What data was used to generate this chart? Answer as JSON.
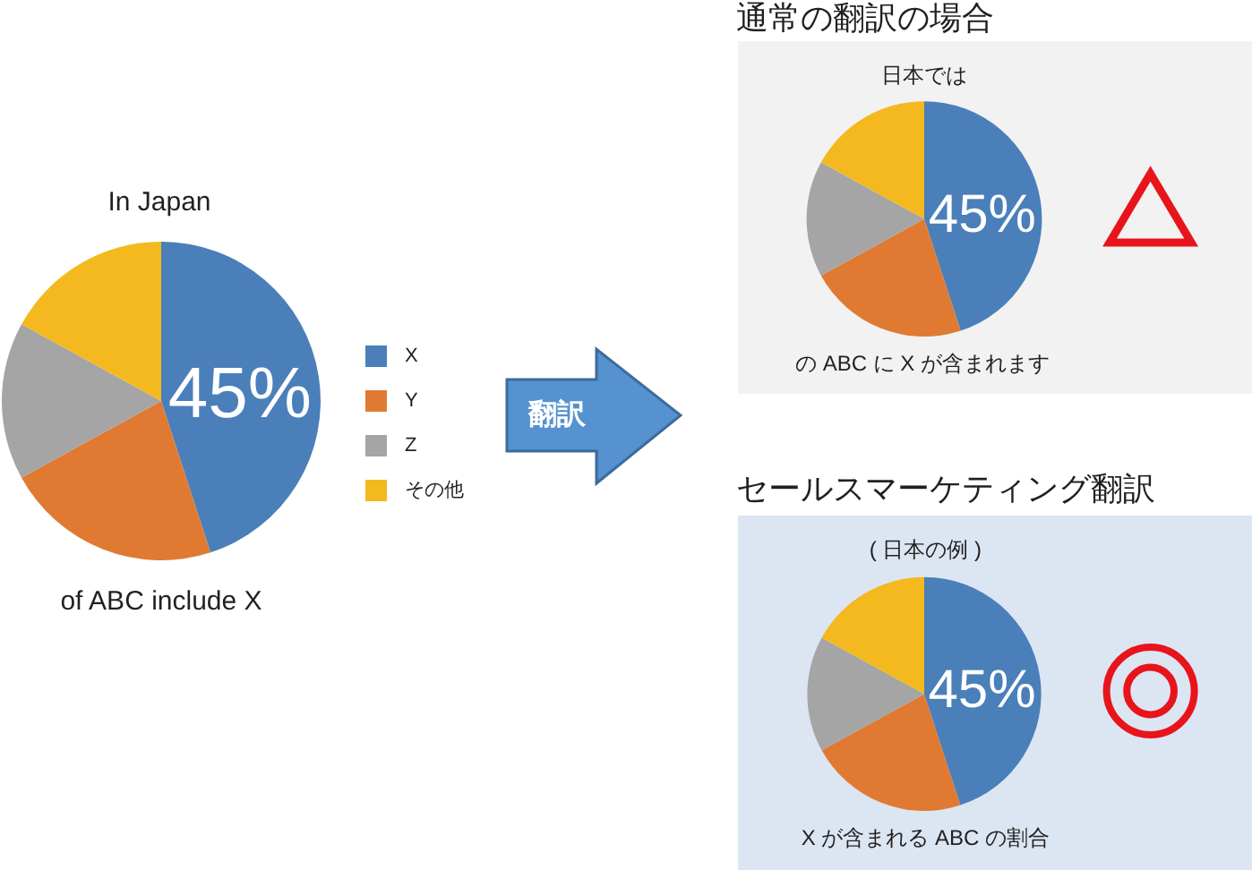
{
  "chart_data": [
    {
      "type": "pie",
      "title": "In Japan",
      "categories": [
        "X",
        "Y",
        "Z",
        "その他"
      ],
      "values": [
        45,
        22,
        16,
        17
      ],
      "colors": [
        "#4a7fba",
        "#e07a33",
        "#a5a5a5",
        "#f3b91f"
      ],
      "value_labels": [
        "45%",
        null,
        null,
        null
      ],
      "legend": "right",
      "annotations": [
        "of ABC include X",
        "翻訳"
      ]
    },
    {
      "type": "pie",
      "title": "通常の翻訳の場合",
      "subtitle": "日本では",
      "categories": [
        null,
        null,
        null,
        null
      ],
      "values": [
        45,
        22,
        16,
        17
      ],
      "colors": [
        "#4a7fba",
        "#e07a33",
        "#a5a5a5",
        "#f3b91f"
      ],
      "value_labels": [
        "45%",
        null,
        null,
        null
      ],
      "annotations": [
        "の ABC に X が含まれます"
      ]
    },
    {
      "type": "pie",
      "title": "セールスマーケティング翻訳",
      "subtitle": "( 日本の例 )",
      "categories": [
        null,
        null,
        null,
        null
      ],
      "values": [
        45,
        22,
        16,
        17
      ],
      "colors": [
        "#4a7fba",
        "#e07a33",
        "#a5a5a5",
        "#f3b91f"
      ],
      "value_labels": [
        "45%",
        null,
        null,
        null
      ],
      "annotations": [
        "X が含まれる ABC の割合"
      ]
    }
  ]
}
